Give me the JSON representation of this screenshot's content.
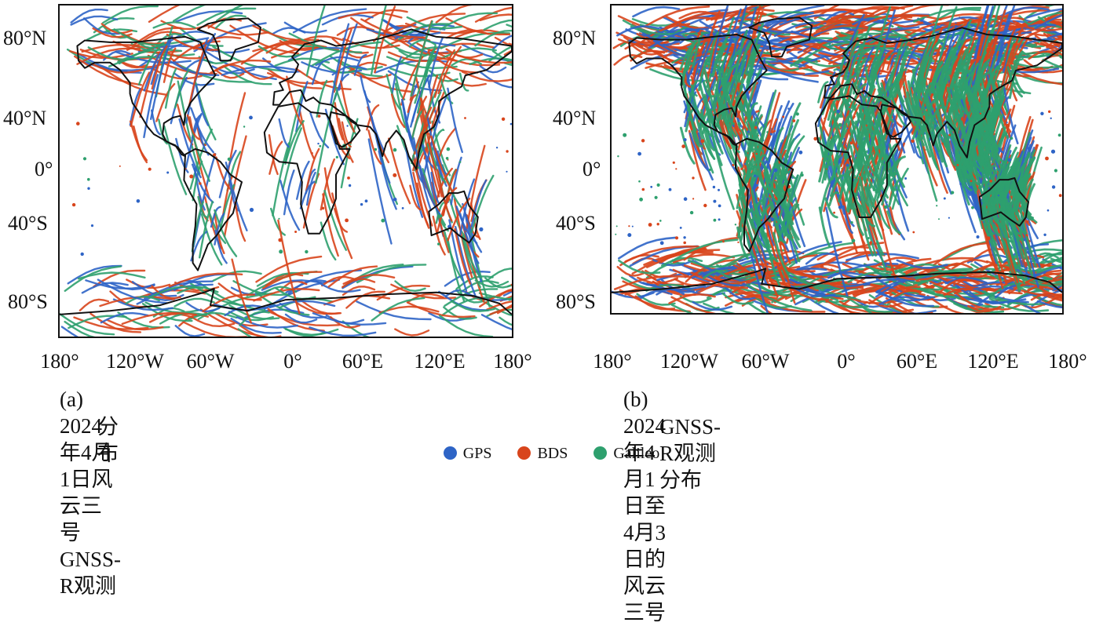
{
  "panels": [
    {
      "lat_labels": [
        "80°N",
        "40°N",
        "0°",
        "40°S",
        "80°S"
      ],
      "lon_labels": [
        "180°",
        "120°W",
        "60°W",
        "0°",
        "60°E",
        "120°E",
        "180°"
      ],
      "caption_line1": "(a) 2024年4月1日风云三号GNSS-R观测",
      "caption_line2": "分布",
      "density": "single-day"
    },
    {
      "lat_labels": [
        "80°N",
        "40°N",
        "0°",
        "40°S",
        "80°S"
      ],
      "lon_labels": [
        "180°",
        "120°W",
        "60°W",
        "0°",
        "60°E",
        "120°E",
        "180°"
      ],
      "caption_line1": "(b) 2024年4月1日至4月3日的风云三号",
      "caption_line2": "GNSS-R观测分布",
      "density": "three-day"
    }
  ],
  "legend": [
    {
      "label": "GPS",
      "color": "#2e64c6"
    },
    {
      "label": "BDS",
      "color": "#d8451c"
    },
    {
      "label": "Galileo",
      "color": "#2ea06e"
    }
  ]
}
